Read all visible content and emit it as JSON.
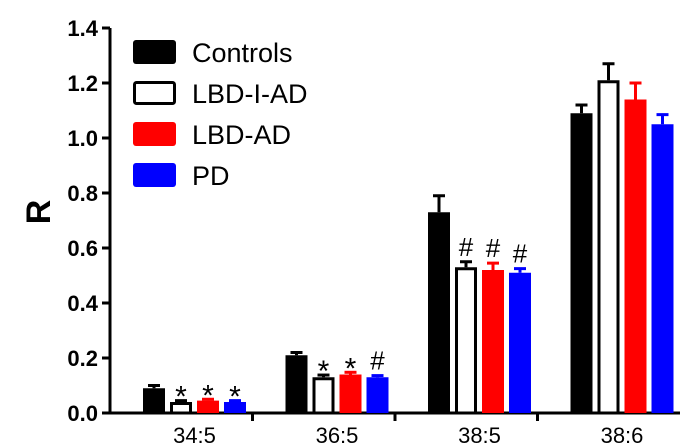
{
  "chart_data": {
    "type": "bar",
    "ylabel": "R",
    "xlabel": "",
    "title": "",
    "ylim": [
      0,
      1.4
    ],
    "yticks": [
      "0.0",
      "0.2",
      "0.4",
      "0.6",
      "0.8",
      "1.0",
      "1.2",
      "1.4"
    ],
    "categories": [
      "34:5",
      "36:5",
      "38:5",
      "38:6"
    ],
    "legend_position": "top-left",
    "series": [
      {
        "name": "Controls",
        "color": "#000000",
        "fill": "solid",
        "values": [
          0.09,
          0.21,
          0.73,
          1.09
        ],
        "errors": [
          0.01,
          0.01,
          0.06,
          0.03
        ],
        "annotations": [
          "",
          "",
          "",
          ""
        ]
      },
      {
        "name": "LBD-I-AD",
        "color": "#000000",
        "fill": "hollow",
        "values": [
          0.04,
          0.13,
          0.53,
          1.21
        ],
        "errors": [
          0.005,
          0.008,
          0.02,
          0.06
        ],
        "annotations": [
          "*",
          "*",
          "#",
          ""
        ]
      },
      {
        "name": "LBD-AD",
        "color": "#ff0000",
        "fill": "solid",
        "values": [
          0.045,
          0.14,
          0.52,
          1.14
        ],
        "errors": [
          0.005,
          0.008,
          0.025,
          0.06
        ],
        "annotations": [
          "*",
          "*",
          "#",
          ""
        ]
      },
      {
        "name": "PD",
        "color": "#0000ff",
        "fill": "solid",
        "values": [
          0.04,
          0.13,
          0.51,
          1.05
        ],
        "errors": [
          0.005,
          0.006,
          0.015,
          0.035
        ],
        "annotations": [
          "*",
          "#",
          "#",
          ""
        ]
      }
    ]
  }
}
